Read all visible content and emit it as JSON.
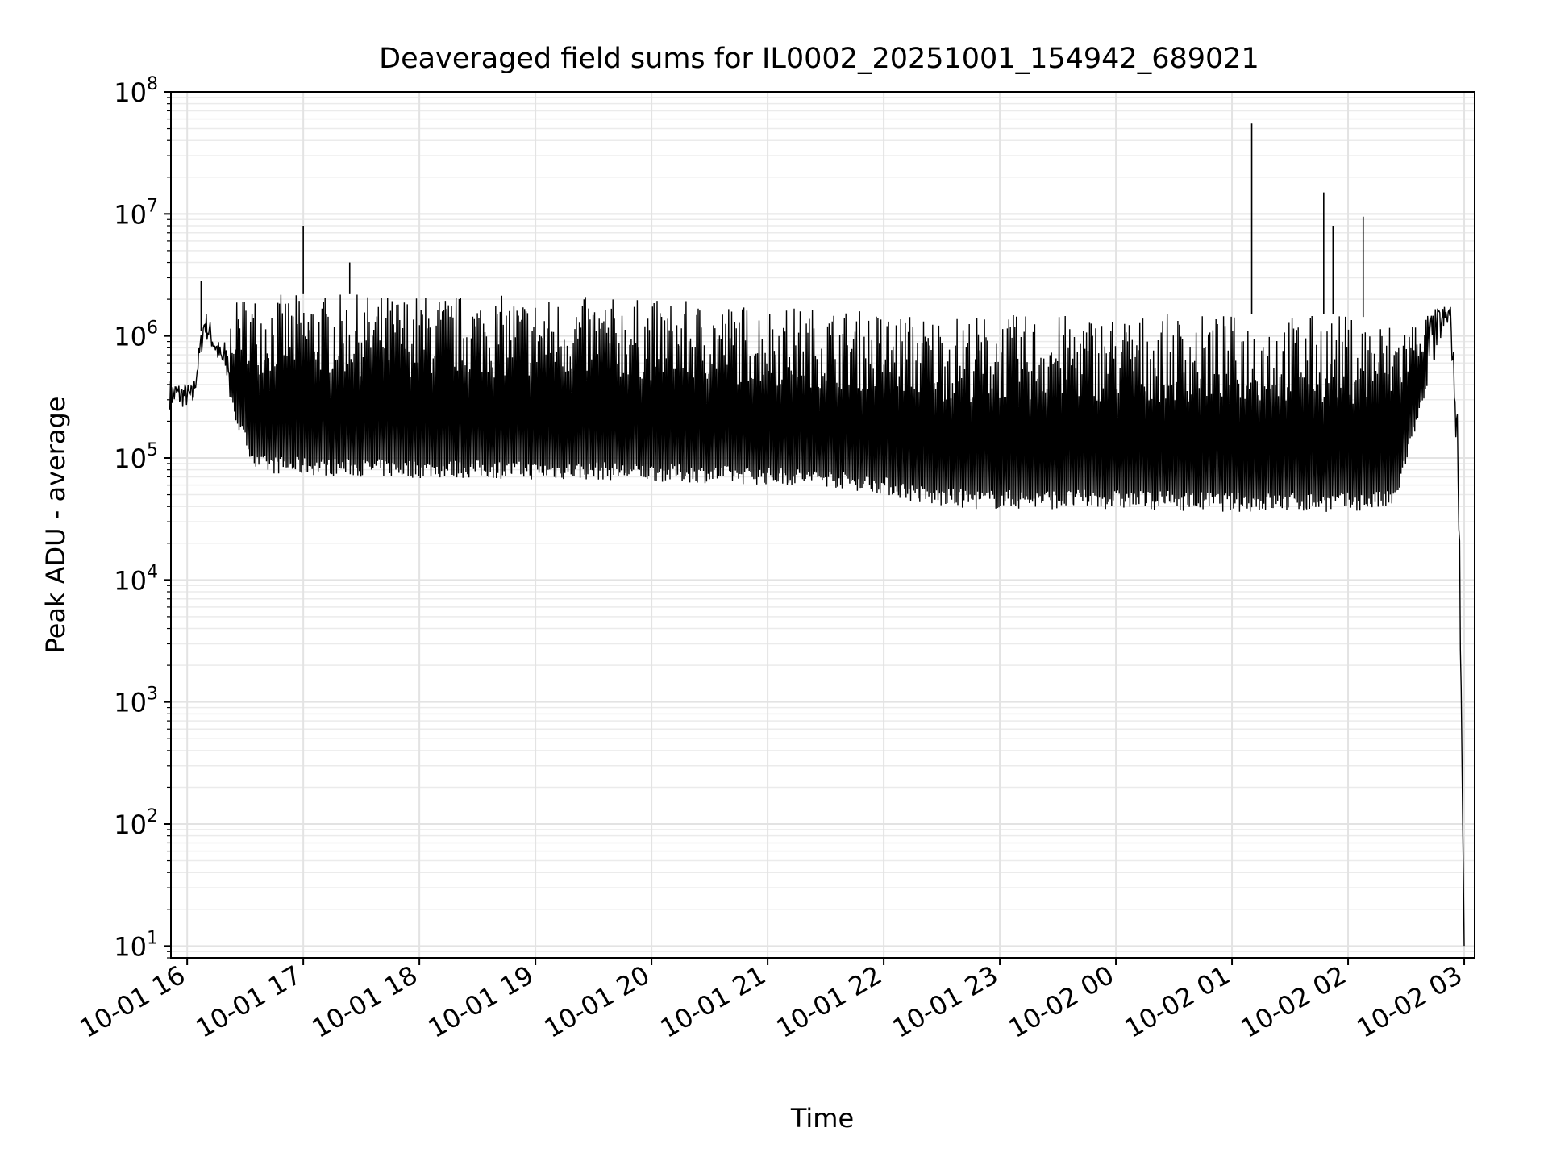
{
  "chart_data": {
    "type": "line",
    "title": "Deaveraged field sums for IL0002_20251001_154942_689021",
    "xlabel": "Time",
    "ylabel": "Peak ADU - average",
    "yscale": "log",
    "ylim": [
      8,
      100000000
    ],
    "xlim_hours": [
      -0.14,
      11.09
    ],
    "grid": true,
    "x_tick_labels": [
      "10-01 16",
      "10-01 17",
      "10-01 18",
      "10-01 19",
      "10-01 20",
      "10-01 21",
      "10-01 22",
      "10-01 23",
      "10-02 00",
      "10-02 01",
      "10-02 02",
      "10-02 03"
    ],
    "y_ticks": [
      {
        "value": 10,
        "base": "10",
        "exp": "1"
      },
      {
        "value": 100,
        "base": "10",
        "exp": "2"
      },
      {
        "value": 1000,
        "base": "10",
        "exp": "3"
      },
      {
        "value": 10000,
        "base": "10",
        "exp": "4"
      },
      {
        "value": 100000,
        "base": "10",
        "exp": "5"
      },
      {
        "value": 1000000,
        "base": "10",
        "exp": "6"
      },
      {
        "value": 10000000,
        "base": "10",
        "exp": "7"
      },
      {
        "value": 100000000,
        "base": "10",
        "exp": "8"
      }
    ],
    "series": [
      {
        "name": "Peak ADU - average",
        "color": "#000000",
        "envelope": {
          "x_hours": [
            -0.15,
            0.05,
            0.15,
            0.3,
            0.45,
            0.6,
            1.0,
            1.5,
            2.0,
            2.5,
            3.0,
            3.5,
            4.0,
            4.5,
            5.0,
            5.5,
            6.0,
            6.4,
            6.8,
            7.2,
            7.6,
            8.0,
            8.5,
            9.0,
            9.5,
            9.8,
            10.0,
            10.4,
            10.6,
            10.8,
            10.88,
            10.95,
            11.0
          ],
          "low": [
            250000,
            260000,
            1000000,
            500000,
            160000,
            75000,
            72000,
            70000,
            68000,
            68000,
            66000,
            66000,
            64000,
            62000,
            60000,
            58000,
            50000,
            40000,
            38000,
            38000,
            38000,
            38000,
            37000,
            36000,
            36000,
            36000,
            36000,
            38000,
            200000,
            900000,
            1200000,
            50000,
            10
          ],
          "high": [
            450000,
            400000,
            1700000,
            800000,
            2200000,
            2200000,
            2200000,
            2200000,
            2200000,
            2200000,
            2100000,
            2100000,
            2000000,
            1900000,
            1800000,
            1700000,
            1600000,
            1500000,
            1500000,
            1500000,
            1500000,
            1500000,
            1500000,
            1500000,
            1500000,
            1500000,
            1500000,
            1300000,
            1400000,
            1800000,
            1900000,
            200000,
            10
          ]
        },
        "spikes": [
          {
            "x_hour": 0.12,
            "y": 2800000
          },
          {
            "x_hour": 1.0,
            "y": 8000000
          },
          {
            "x_hour": 1.4,
            "y": 4000000
          },
          {
            "x_hour": 9.17,
            "y": 55000000
          },
          {
            "x_hour": 9.79,
            "y": 15000000
          },
          {
            "x_hour": 9.87,
            "y": 8000000
          },
          {
            "x_hour": 10.13,
            "y": 9500000
          }
        ]
      }
    ]
  }
}
